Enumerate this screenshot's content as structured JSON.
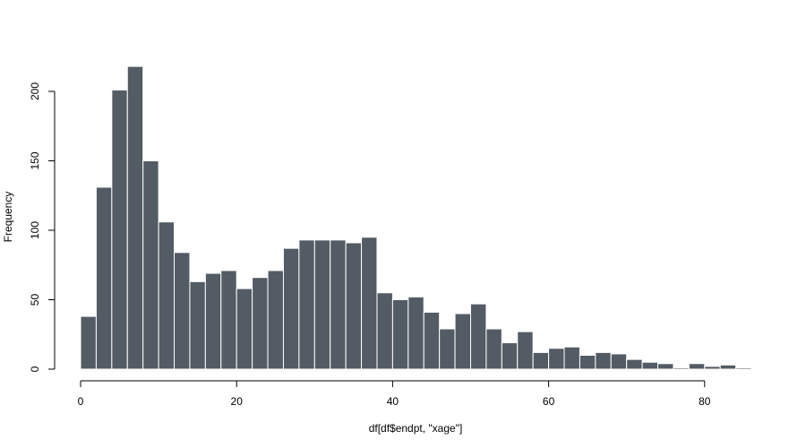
{
  "chart_data": {
    "type": "bar",
    "title": "",
    "xlabel": "df[df$endpt, \"xage\"]",
    "ylabel": "Frequency",
    "bin_width": 2,
    "bin_start": 0,
    "values": [
      38,
      131,
      201,
      218,
      150,
      106,
      84,
      63,
      69,
      71,
      58,
      66,
      71,
      87,
      93,
      93,
      93,
      91,
      95,
      55,
      50,
      52,
      41,
      29,
      40,
      47,
      29,
      19,
      27,
      12,
      15,
      16,
      10,
      12,
      11,
      7,
      5,
      4,
      1,
      4,
      2,
      3,
      1
    ],
    "xlim": [
      0,
      86
    ],
    "ylim": [
      0,
      218
    ],
    "x_ticks": [
      0,
      20,
      40,
      60,
      80
    ],
    "y_ticks": [
      0,
      50,
      100,
      150,
      200
    ],
    "bar_color": "#535c64",
    "bar_border_color": "#ffffff",
    "grid": false,
    "legend": "none"
  }
}
